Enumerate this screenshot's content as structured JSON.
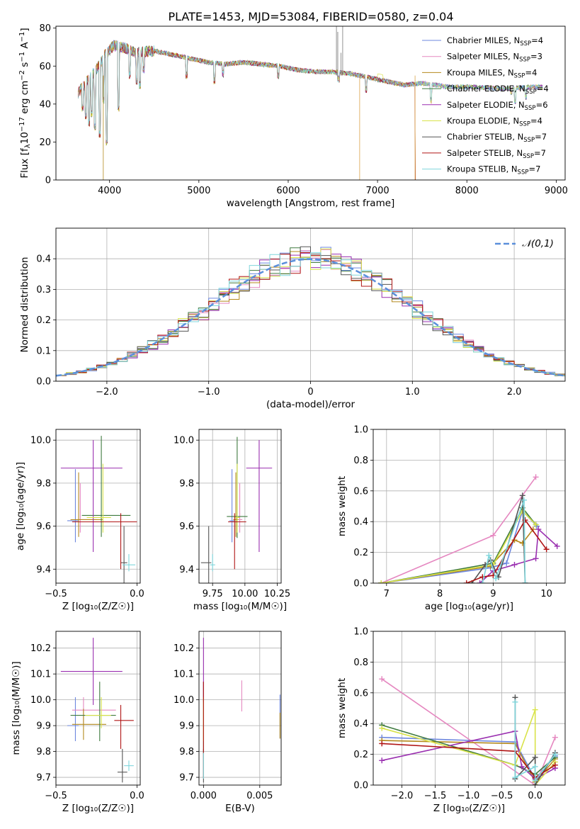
{
  "figure": {
    "title": "PLATE=1453, MJD=53084, FIBERID=0580, z=0.04"
  },
  "colors": [
    "#6d87df",
    "#e587c0",
    "#b48a1e",
    "#3f7a3f",
    "#9a2fb0",
    "#d9e34a",
    "#555555",
    "#b01515",
    "#7fd6dc"
  ],
  "models": [
    {
      "name": "Chabrier MILES, N",
      "sub": "SSP",
      "tail": "=4",
      "color": "#6d87df"
    },
    {
      "name": "Salpeter MILES, N",
      "sub": "SSP",
      "tail": "=3",
      "color": "#e587c0"
    },
    {
      "name": "Kroupa MILES, N",
      "sub": "SSP",
      "tail": "=4",
      "color": "#b48a1e"
    },
    {
      "name": "Chabrier ELODIE, N",
      "sub": "SSP",
      "tail": "=4",
      "color": "#3f7a3f"
    },
    {
      "name": "Salpeter ELODIE, N",
      "sub": "SSP",
      "tail": "=6",
      "color": "#9a2fb0"
    },
    {
      "name": "Kroupa ELODIE, N",
      "sub": "SSP",
      "tail": "=4",
      "color": "#d9e34a"
    },
    {
      "name": "Chabrier STELIB, N",
      "sub": "SSP",
      "tail": "=7",
      "color": "#555555"
    },
    {
      "name": "Salpeter STELIB, N",
      "sub": "SSP",
      "tail": "=7",
      "color": "#b01515"
    },
    {
      "name": "Kroupa STELIB, N",
      "sub": "SSP",
      "tail": "=7",
      "color": "#7fd6dc"
    }
  ],
  "chart_data": [
    {
      "id": "spectrum",
      "type": "line",
      "xlabel": "wavelength [Angstrom, rest frame]",
      "ylabel_parts": [
        "Flux [f",
        "λ",
        "10",
        "−17",
        " erg cm",
        "−2",
        " s",
        "−1",
        " A",
        "−1",
        "]"
      ],
      "xlim": [
        3400,
        9100
      ],
      "ylim": [
        0,
        81
      ],
      "xticks": [
        4000,
        5000,
        6000,
        7000,
        8000,
        9000
      ],
      "yticks": [
        0,
        20,
        40,
        60,
        80
      ],
      "continuum": [
        [
          3650,
          46
        ],
        [
          3750,
          52
        ],
        [
          3850,
          58
        ],
        [
          3950,
          66
        ],
        [
          4050,
          71
        ],
        [
          4150,
          70
        ],
        [
          4300,
          67
        ],
        [
          4500,
          68
        ],
        [
          4700,
          66
        ],
        [
          4900,
          64
        ],
        [
          5100,
          62
        ],
        [
          5300,
          61
        ],
        [
          5500,
          62
        ],
        [
          5700,
          61
        ],
        [
          5900,
          60
        ],
        [
          6100,
          58
        ],
        [
          6300,
          57
        ],
        [
          6500,
          57
        ],
        [
          6700,
          56
        ],
        [
          6900,
          54
        ],
        [
          7100,
          52
        ],
        [
          7300,
          50
        ],
        [
          7500,
          51
        ],
        [
          7800,
          49
        ],
        [
          8100,
          49
        ],
        [
          8400,
          48
        ],
        [
          8700,
          49
        ],
        [
          8850,
          49
        ]
      ],
      "absorption": [
        [
          3700,
          38
        ],
        [
          3735,
          34
        ],
        [
          3772,
          30
        ],
        [
          3800,
          35
        ],
        [
          3835,
          28
        ],
        [
          3889,
          24
        ],
        [
          3934,
          42
        ],
        [
          3969,
          20
        ],
        [
          4102,
          38
        ],
        [
          4226,
          55
        ],
        [
          4305,
          52
        ],
        [
          4340,
          50
        ],
        [
          4383,
          58
        ],
        [
          4861,
          55
        ],
        [
          5175,
          52
        ],
        [
          5270,
          56
        ],
        [
          5890,
          55
        ],
        [
          6563,
          53
        ],
        [
          6870,
          48
        ],
        [
          7600,
          42
        ],
        [
          8500,
          47
        ],
        [
          8542,
          42
        ],
        [
          8662,
          44
        ]
      ],
      "spikes": [
        [
          6540,
          81
        ],
        [
          6555,
          78
        ],
        [
          6610,
          81
        ],
        [
          6590,
          67
        ],
        [
          3930,
          0
        ],
        [
          6800,
          0
        ],
        [
          7420,
          0
        ]
      ]
    },
    {
      "id": "residuals",
      "type": "step-histogram",
      "xlabel": "(data-model)/error",
      "ylabel": "Normed distribution",
      "legend": "𝒩(0,1)",
      "xlim": [
        -2.5,
        2.5
      ],
      "ylim": [
        0,
        0.5
      ],
      "xticks": [
        -2,
        -1,
        0,
        1,
        2
      ],
      "yticks": [
        0.0,
        0.1,
        0.2,
        0.3,
        0.4
      ],
      "bin_width": 0.1,
      "gaussian": {
        "mean": 0,
        "sigma": 1,
        "color": "#5b8fdb"
      }
    },
    {
      "id": "age-vs-Z",
      "type": "errorbar",
      "xlabel": "Z [log₁₀(Z/Z☉)]",
      "ylabel": "age  [log₁₀(age/yr)]",
      "xlim": [
        -0.5,
        0.02
      ],
      "ylim": [
        9.335,
        10.05
      ],
      "xticks": [
        -0.5,
        0.0
      ],
      "yticks": [
        9.4,
        9.6,
        9.8,
        10.0
      ],
      "points": [
        {
          "x": -0.38,
          "xerr": [
            0.05,
            0.02
          ],
          "y": 9.625,
          "yerr": [
            0.1,
            0.24
          ]
        },
        {
          "x": -0.35,
          "xerr": [
            0.02,
            0.1
          ],
          "y": 9.63,
          "yerr": [
            0.06,
            0.17
          ]
        },
        {
          "x": -0.36,
          "xerr": [
            0.05,
            0.15
          ],
          "y": 9.63,
          "yerr": [
            0.08,
            0.22
          ]
        },
        {
          "x": -0.22,
          "xerr": [
            0.12,
            0.18
          ],
          "y": 9.65,
          "yerr": [
            0.1,
            0.37
          ]
        },
        {
          "x": -0.27,
          "xerr": [
            0.2,
            0.18
          ],
          "y": 9.87,
          "yerr": [
            0.39,
            0.13
          ]
        },
        {
          "x": -0.21,
          "xerr": [
            0.1,
            0.05
          ],
          "y": 9.64,
          "yerr": [
            0.07,
            0.25
          ]
        },
        {
          "x": -0.08,
          "xerr": [
            0.02,
            0.02
          ],
          "y": 9.43,
          "yerr": [
            0.1,
            0.17
          ]
        },
        {
          "x": -0.1,
          "xerr": [
            0.3,
            0.1
          ],
          "y": 9.62,
          "yerr": [
            0.22,
            0.04
          ]
        },
        {
          "x": -0.05,
          "xerr": [
            0.04,
            0.04
          ],
          "y": 9.42,
          "yerr": [
            0.03,
            0.05
          ]
        }
      ]
    },
    {
      "id": "age-vs-mass",
      "type": "errorbar",
      "xlabel": "mass [log₁₀(M/M☉)]",
      "ylabel": "",
      "xlim": [
        9.645,
        10.28
      ],
      "ylim": [
        9.335,
        10.05
      ],
      "xticks": [
        9.75,
        10.0,
        10.25
      ],
      "yticks": [
        9.4,
        9.6,
        9.8,
        10.0
      ],
      "points": [
        {
          "x": 9.9,
          "xerr": [
            0.02,
            0.02
          ],
          "y": 9.625,
          "yerr": [
            0.1,
            0.24
          ]
        },
        {
          "x": 9.96,
          "xerr": [
            0.01,
            0.02
          ],
          "y": 9.63,
          "yerr": [
            0.06,
            0.17
          ]
        },
        {
          "x": 9.93,
          "xerr": [
            0.02,
            0.02
          ],
          "y": 9.63,
          "yerr": [
            0.08,
            0.22
          ]
        },
        {
          "x": 9.94,
          "xerr": [
            0.08,
            0.08
          ],
          "y": 9.645,
          "yerr": [
            0.1,
            0.37
          ]
        },
        {
          "x": 10.11,
          "xerr": [
            0.1,
            0.1
          ],
          "y": 9.87,
          "yerr": [
            0.39,
            0.13
          ]
        },
        {
          "x": 9.94,
          "xerr": [
            0.02,
            0.02
          ],
          "y": 9.64,
          "yerr": [
            0.07,
            0.25
          ]
        },
        {
          "x": 9.72,
          "xerr": [
            0.06,
            0.02
          ],
          "y": 9.43,
          "yerr": [
            0.1,
            0.17
          ]
        },
        {
          "x": 9.92,
          "xerr": [
            0.05,
            0.09
          ],
          "y": 9.62,
          "yerr": [
            0.22,
            0.04
          ]
        },
        {
          "x": 9.75,
          "xerr": [
            0.02,
            0.02
          ],
          "y": 9.42,
          "yerr": [
            0.03,
            0.05
          ]
        }
      ]
    },
    {
      "id": "mass-weight-vs-age",
      "type": "line",
      "xlabel": "age  [log₁₀(age/yr)]",
      "ylabel": "mass weight",
      "xlim": [
        6.75,
        10.35
      ],
      "ylim": [
        0,
        1.0
      ],
      "xticks": [
        7,
        8,
        9,
        10
      ],
      "yticks": [
        0.0,
        0.2,
        0.4,
        0.6,
        0.8,
        1.0
      ],
      "series": [
        {
          "x": [
            6.9,
            8.95,
            9.25,
            9.55,
            9.82
          ],
          "y": [
            0.0,
            0.1,
            0.13,
            0.47,
            0.37
          ]
        },
        {
          "x": [
            6.9,
            9.0,
            9.8
          ],
          "y": [
            0.0,
            0.31,
            0.69
          ]
        },
        {
          "x": [
            6.9,
            8.95,
            9.4,
            9.55,
            9.75
          ],
          "y": [
            0.0,
            0.11,
            0.28,
            0.26,
            0.35
          ]
        },
        {
          "x": [
            6.9,
            9.0,
            9.55,
            9.8
          ],
          "y": [
            0.0,
            0.13,
            0.49,
            0.38
          ]
        },
        {
          "x": [
            8.75,
            9.0,
            9.4,
            9.8,
            9.85,
            10.2
          ],
          "y": [
            0.0,
            0.08,
            0.12,
            0.16,
            0.35,
            0.24
          ]
        },
        {
          "x": [
            6.9,
            9.0,
            9.55,
            9.8
          ],
          "y": [
            0.0,
            0.12,
            0.47,
            0.38
          ]
        },
        {
          "x": [
            8.6,
            8.85,
            8.95,
            9.1,
            9.55,
            9.6
          ],
          "y": [
            0.0,
            0.12,
            0.15,
            0.04,
            0.57,
            0.0
          ]
        },
        {
          "x": [
            8.5,
            8.8,
            9.0,
            9.6,
            10.0
          ],
          "y": [
            0.0,
            0.04,
            0.05,
            0.41,
            0.22
          ]
        },
        {
          "x": [
            8.8,
            8.92,
            9.05,
            9.58,
            9.6
          ],
          "y": [
            0.0,
            0.18,
            0.03,
            0.54,
            0.0
          ]
        }
      ]
    },
    {
      "id": "mass-vs-Z",
      "type": "errorbar",
      "xlabel": "Z [log₁₀(Z/Z☉)]",
      "ylabel": "mass [log₁₀(M/M☉)]",
      "xlim": [
        -0.5,
        0.02
      ],
      "ylim": [
        9.67,
        10.265
      ],
      "xticks": [
        -0.5,
        0.0
      ],
      "yticks": [
        9.7,
        9.8,
        9.9,
        10.0,
        10.1,
        10.2
      ],
      "points": [
        {
          "x": -0.38,
          "xerr": [
            0.05,
            0.02
          ],
          "y": 9.9,
          "yerr": [
            0.06,
            0.11
          ]
        },
        {
          "x": -0.33,
          "xerr": [
            0.07,
            0.2
          ],
          "y": 9.96,
          "yerr": [
            0.05,
            0.05
          ]
        },
        {
          "x": -0.33,
          "xerr": [
            0.07,
            0.14
          ],
          "y": 9.905,
          "yerr": [
            0.06,
            0.06
          ]
        },
        {
          "x": -0.23,
          "xerr": [
            0.18,
            0.1
          ],
          "y": 9.94,
          "yerr": [
            0.1,
            0.13
          ]
        },
        {
          "x": -0.27,
          "xerr": [
            0.2,
            0.18
          ],
          "y": 10.11,
          "yerr": [
            0.13,
            0.13
          ]
        },
        {
          "x": -0.22,
          "xerr": [
            0.1,
            0.06
          ],
          "y": 9.94,
          "yerr": [
            0.05,
            0.07
          ]
        },
        {
          "x": -0.09,
          "xerr": [
            0.03,
            0.03
          ],
          "y": 9.72,
          "yerr": [
            0.04,
            0.09
          ]
        },
        {
          "x": -0.1,
          "xerr": [
            0.04,
            0.08
          ],
          "y": 9.92,
          "yerr": [
            0.11,
            0.06
          ]
        },
        {
          "x": -0.05,
          "xerr": [
            0.03,
            0.03
          ],
          "y": 9.745,
          "yerr": [
            0.02,
            0.02
          ]
        }
      ]
    },
    {
      "id": "mass-vs-EBV",
      "type": "errorbar",
      "xlabel": "E(B-V)",
      "ylabel": "",
      "xlim": [
        -0.0004,
        0.0069
      ],
      "ylim": [
        9.67,
        10.265
      ],
      "xticks": [
        0.0,
        0.005
      ],
      "yticks": [
        9.7,
        9.8,
        9.9,
        10.0,
        10.1,
        10.2
      ],
      "points": [
        {
          "x": 0.0068,
          "xerr": [
            0,
            0
          ],
          "y": 9.92,
          "yerr": [
            0.07,
            0.1
          ]
        },
        {
          "x": 0.0034,
          "xerr": [
            0,
            0
          ],
          "y": 10.015,
          "yerr": [
            0.06,
            0.06
          ]
        },
        {
          "x": 0.0068,
          "xerr": [
            0,
            0
          ],
          "y": 9.9,
          "yerr": [
            0.05,
            0.05
          ]
        },
        {
          "x": 0.0,
          "xerr": [
            0,
            0
          ],
          "y": 9.94,
          "yerr": [
            0.15,
            0.13
          ]
        },
        {
          "x": 0.0,
          "xerr": [
            0,
            0
          ],
          "y": 10.11,
          "yerr": [
            0.12,
            0.13
          ]
        },
        {
          "x": 0.0,
          "xerr": [
            0,
            0
          ],
          "y": 9.94,
          "yerr": [
            0.1,
            0.07
          ]
        },
        {
          "x": 0.0,
          "xerr": [
            0,
            0
          ],
          "y": 9.72,
          "yerr": [
            0.04,
            0.09
          ]
        },
        {
          "x": 0.0,
          "xerr": [
            0,
            0
          ],
          "y": 9.92,
          "yerr": [
            0.22,
            0.15
          ]
        },
        {
          "x": 0.0,
          "xerr": [
            0,
            0
          ],
          "y": 9.745,
          "yerr": [
            0.05,
            0.05
          ]
        }
      ]
    },
    {
      "id": "mass-weight-vs-Z",
      "type": "line",
      "xlabel": "Z [log₁₀(Z/Z☉)]",
      "ylabel": "mass weight",
      "xlim": [
        -2.43,
        0.45
      ],
      "ylim": [
        0,
        1.0
      ],
      "xticks": [
        -2.0,
        -1.5,
        -1.0,
        -0.5,
        0.0
      ],
      "yticks": [
        0.0,
        0.2,
        0.4,
        0.6,
        0.8,
        1.0
      ],
      "series": [
        {
          "x": [
            -2.3,
            -0.3,
            0.0,
            0.3
          ],
          "y": [
            0.31,
            0.28,
            0.04,
            0.19
          ]
        },
        {
          "x": [
            -2.3,
            0.0,
            0.3
          ],
          "y": [
            0.69,
            0.0,
            0.31
          ]
        },
        {
          "x": [
            -2.3,
            -0.3,
            0.0,
            0.3
          ],
          "y": [
            0.29,
            0.27,
            0.02,
            0.17
          ]
        },
        {
          "x": [
            -2.3,
            -0.3,
            0.0,
            0.3
          ],
          "y": [
            0.39,
            0.13,
            0.07,
            0.18
          ]
        },
        {
          "x": [
            -2.3,
            -0.3,
            -0.2,
            0.0,
            0.3
          ],
          "y": [
            0.16,
            0.35,
            0.12,
            0.04,
            0.11
          ]
        },
        {
          "x": [
            -2.3,
            -0.3,
            0.0,
            0.0,
            0.3
          ],
          "y": [
            0.37,
            0.13,
            0.49,
            0.0,
            0.15
          ]
        },
        {
          "x": [
            -0.3,
            -0.3,
            0.0,
            0.0,
            0.3
          ],
          "y": [
            0.57,
            0.04,
            0.18,
            0.0,
            0.21
          ]
        },
        {
          "x": [
            -2.3,
            -0.3,
            0.0,
            0.3
          ],
          "y": [
            0.27,
            0.22,
            0.05,
            0.13
          ]
        },
        {
          "x": [
            -0.3,
            -0.3,
            0.0,
            0.0,
            0.3
          ],
          "y": [
            0.54,
            0.05,
            0.12,
            0.03,
            0.2
          ]
        }
      ]
    }
  ]
}
